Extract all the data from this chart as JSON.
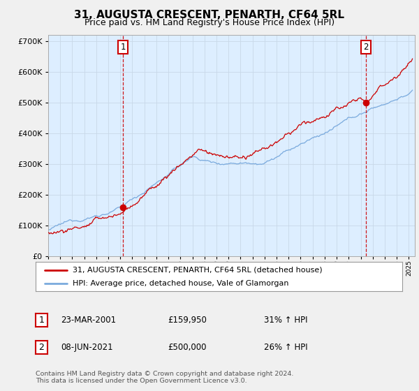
{
  "title": "31, AUGUSTA CRESCENT, PENARTH, CF64 5RL",
  "subtitle": "Price paid vs. HM Land Registry's House Price Index (HPI)",
  "ylim": [
    0,
    720000
  ],
  "xlim_start": 1995.0,
  "xlim_end": 2025.5,
  "line1_color": "#cc0000",
  "line2_color": "#7aaadd",
  "plot_bg": "#ddeeff",
  "marker1_date": 2001.22,
  "marker1_price": 159950,
  "marker2_date": 2021.44,
  "marker2_price": 500000,
  "legend_label1": "31, AUGUSTA CRESCENT, PENARTH, CF64 5RL (detached house)",
  "legend_label2": "HPI: Average price, detached house, Vale of Glamorgan",
  "table_row1": [
    "1",
    "23-MAR-2001",
    "£159,950",
    "31% ↑ HPI"
  ],
  "table_row2": [
    "2",
    "08-JUN-2021",
    "£500,000",
    "26% ↑ HPI"
  ],
  "footnote": "Contains HM Land Registry data © Crown copyright and database right 2024.\nThis data is licensed under the Open Government Licence v3.0.",
  "background_color": "#f0f0f0",
  "grid_color": "#c8d8e8"
}
